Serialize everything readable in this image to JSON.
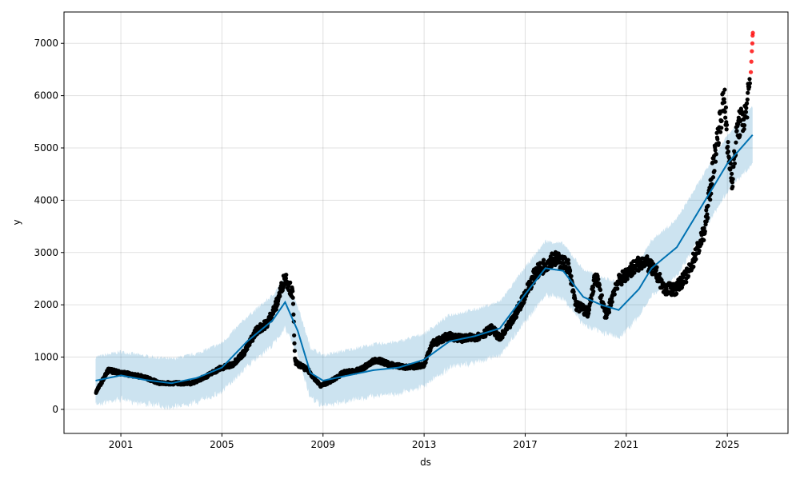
{
  "chart_data": {
    "type": "line",
    "title": "",
    "xlabel": "ds",
    "ylabel": "y",
    "xlim": [
      1998.75,
      2027.4
    ],
    "ylim": [
      -460,
      7600
    ],
    "grid": true,
    "x_ticks": [
      2001,
      2005,
      2009,
      2013,
      2017,
      2021,
      2025
    ],
    "x_tick_labels": [
      "2001",
      "2005",
      "2009",
      "2013",
      "2017",
      "2021",
      "2025"
    ],
    "y_ticks": [
      0,
      1000,
      2000,
      3000,
      4000,
      5000,
      6000,
      7000
    ],
    "y_tick_labels": [
      "0",
      "1000",
      "2000",
      "3000",
      "4000",
      "5000",
      "6000",
      "7000"
    ],
    "colors": {
      "actual": "#000000",
      "future_actual": "#ff0000",
      "forecast": "#0072b2",
      "interval": "#a6cbe3"
    },
    "series": [
      {
        "name": "actual",
        "x": [
          2000.02,
          2000.5,
          2001.0,
          2001.9,
          2002.55,
          2003.8,
          2004.45,
          2004.9,
          2005.4,
          2005.9,
          2006.35,
          2006.8,
          2007.15,
          2007.5,
          2007.8,
          2007.9,
          2008.4,
          2008.9,
          2009.35,
          2009.8,
          2010.45,
          2011.1,
          2011.7,
          2012.35,
          2013.0,
          2013.3,
          2013.95,
          2014.6,
          2015.2,
          2015.7,
          2016.0,
          2016.5,
          2016.95,
          2017.4,
          2018.1,
          2018.7,
          2019.0,
          2019.5,
          2019.8,
          2020.2,
          2020.6,
          2021.25,
          2021.7,
          2022.2,
          2022.5,
          2022.95,
          2023.45,
          2023.77,
          2024.1,
          2024.4,
          2024.7,
          2024.9,
          2025.0,
          2025.2,
          2025.4,
          2025.7,
          2025.9
        ],
        "y": [
          330,
          750,
          700,
          620,
          500,
          500,
          650,
          780,
          850,
          1100,
          1500,
          1650,
          2000,
          2550,
          2200,
          900,
          750,
          450,
          550,
          700,
          750,
          950,
          850,
          800,
          850,
          1250,
          1400,
          1350,
          1400,
          1550,
          1350,
          1700,
          2150,
          2600,
          2900,
          2750,
          2000,
          1850,
          2600,
          1750,
          2400,
          2700,
          2850,
          2600,
          2300,
          2300,
          2600,
          3000,
          3400,
          4500,
          5500,
          6000,
          5000,
          4400,
          5400,
          5600,
          6200
        ]
      },
      {
        "name": "future_actual",
        "x": [
          2025.93,
          2025.95,
          2025.97,
          2025.99,
          2026.0,
          2026.01
        ],
        "y": [
          6450,
          6650,
          6850,
          7000,
          7150,
          7200
        ]
      },
      {
        "name": "yhat",
        "x": [
          2000,
          2001,
          2002,
          2003,
          2004,
          2005,
          2006,
          2007,
          2007.5,
          2008,
          2008.5,
          2009,
          2010,
          2011,
          2012,
          2013,
          2014,
          2015,
          2016,
          2017,
          2017.8,
          2018.5,
          2019.3,
          2020,
          2020.7,
          2021.5,
          2022,
          2023,
          2024,
          2025,
          2026
        ],
        "y": [
          550,
          650,
          560,
          500,
          600,
          800,
          1300,
          1700,
          2050,
          1500,
          700,
          550,
          650,
          750,
          800,
          950,
          1300,
          1400,
          1550,
          2200,
          2700,
          2650,
          2150,
          2000,
          1900,
          2300,
          2700,
          3100,
          3900,
          4700,
          5250
        ]
      },
      {
        "name": "yhat_interval_half_width",
        "x": [
          2000,
          2026
        ],
        "y": [
          450,
          550
        ]
      }
    ]
  }
}
